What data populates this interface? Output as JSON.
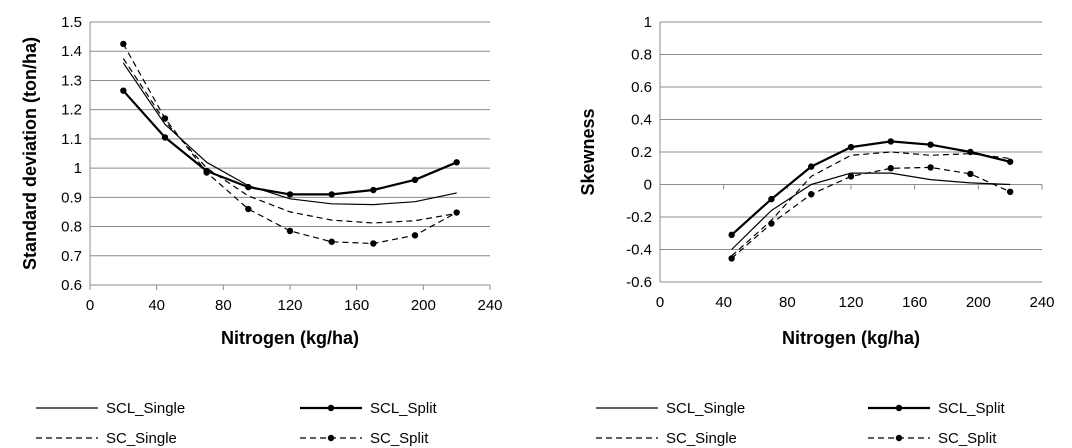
{
  "chart_data": [
    {
      "type": "line",
      "xlabel": "Nitrogen (kg/ha)",
      "ylabel": "Standard deviation (ton/ha)",
      "xlim": [
        0,
        240
      ],
      "ylim": [
        0.6,
        1.5
      ],
      "x_ticks": [
        "0",
        "40",
        "80",
        "120",
        "160",
        "200",
        "240"
      ],
      "y_ticks": [
        "0.6",
        "0.7",
        "0.8",
        "0.9",
        "1",
        "1.1",
        "1.2",
        "1.3",
        "1.4",
        "1.5"
      ],
      "grid": "horizontal",
      "legend": "bottom",
      "x": [
        20,
        45,
        70,
        95,
        120,
        145,
        170,
        195,
        220
      ],
      "series": [
        {
          "name": "SCL_Single",
          "style": "solid-thin",
          "values": [
            1.36,
            1.15,
            1.02,
            0.94,
            0.895,
            0.878,
            0.875,
            0.885,
            0.915
          ]
        },
        {
          "name": "SCL_Split",
          "style": "solid-thick-markers",
          "values": [
            1.265,
            1.105,
            0.99,
            0.935,
            0.91,
            0.91,
            0.925,
            0.96,
            1.02
          ]
        },
        {
          "name": "SC_Single",
          "style": "dashed",
          "values": [
            1.375,
            1.16,
            1.0,
            0.905,
            0.85,
            0.822,
            0.812,
            0.82,
            0.845
          ]
        },
        {
          "name": "SC_Split",
          "style": "dashed-markers",
          "values": [
            1.425,
            1.17,
            0.985,
            0.86,
            0.785,
            0.748,
            0.742,
            0.77,
            0.848
          ]
        }
      ]
    },
    {
      "type": "line",
      "xlabel": "Nitrogen (kg/ha)",
      "ylabel": "Skewness",
      "xlim": [
        0,
        240
      ],
      "ylim": [
        -0.6,
        1
      ],
      "x_ticks": [
        "0",
        "40",
        "80",
        "120",
        "160",
        "200",
        "240"
      ],
      "y_ticks": [
        "-0.6",
        "-0.4",
        "-0.2",
        "0",
        "0.2",
        "0.4",
        "0.6",
        "0.8",
        "1"
      ],
      "grid": "horizontal",
      "legend": "bottom",
      "x": [
        45,
        70,
        95,
        120,
        145,
        170,
        195,
        220
      ],
      "series": [
        {
          "name": "SCL_Single",
          "style": "solid-thin",
          "values": [
            -0.4,
            -0.16,
            0.0,
            0.07,
            0.07,
            0.03,
            0.01,
            0.0
          ]
        },
        {
          "name": "SCL_Split",
          "style": "solid-thick-markers",
          "values": [
            -0.31,
            -0.09,
            0.11,
            0.23,
            0.265,
            0.245,
            0.2,
            0.14
          ]
        },
        {
          "name": "SC_Single",
          "style": "dashed",
          "values": [
            -0.44,
            -0.22,
            0.05,
            0.18,
            0.2,
            0.18,
            0.19,
            0.16
          ]
        },
        {
          "name": "SC_Split",
          "style": "dashed-markers",
          "values": [
            -0.455,
            -0.24,
            -0.06,
            0.05,
            0.1,
            0.105,
            0.065,
            -0.045
          ]
        }
      ]
    }
  ]
}
